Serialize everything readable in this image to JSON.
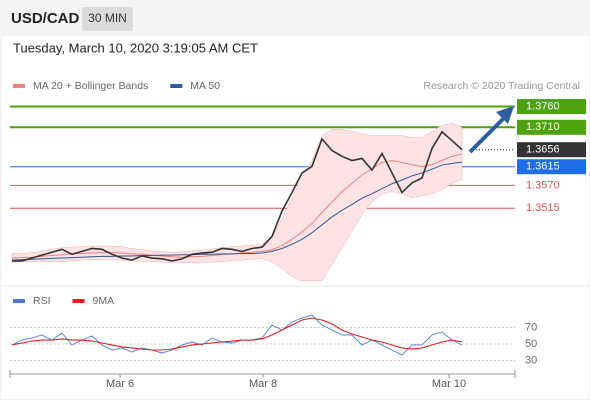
{
  "header": {
    "symbol": "USD/CAD",
    "timeframe": "30 MIN",
    "timestamp": "Tuesday, March 10, 2020 3:19:05 AM CET"
  },
  "chart_data": [
    {
      "type": "line",
      "source": "Research © 2020 Trading Central",
      "xlim": [
        -0.2,
        50.3
      ],
      "ylim": [
        1.333,
        1.3795
      ],
      "x": [
        0,
        1,
        2,
        3,
        4,
        5,
        6,
        7,
        8,
        9,
        10,
        11,
        12,
        13,
        14,
        15,
        16,
        17,
        18,
        19,
        20,
        21,
        22,
        23,
        24,
        25,
        26,
        27,
        28,
        29,
        30,
        31,
        32,
        33,
        34,
        35,
        36,
        37,
        38,
        39,
        40,
        41,
        42,
        43,
        44,
        45
      ],
      "series": [
        {
          "name": "MA 20 + Bollinger Bands",
          "color": "#f08080",
          "band_color": "#fde3e3",
          "values": [
            1.3395,
            1.3396,
            1.3397,
            1.3399,
            1.3401,
            1.3403,
            1.3405,
            1.3406,
            1.3407,
            1.3408,
            1.3408,
            1.3407,
            1.3405,
            1.3404,
            1.3402,
            1.34,
            1.3398,
            1.3397,
            1.3398,
            1.3399,
            1.3401,
            1.3403,
            1.3405,
            1.3407,
            1.3409,
            1.3411,
            1.3415,
            1.3425,
            1.344,
            1.3458,
            1.3478,
            1.3505,
            1.353,
            1.3555,
            1.3575,
            1.3595,
            1.361,
            1.3625,
            1.363,
            1.3625,
            1.362,
            1.3615,
            1.362,
            1.363,
            1.364,
            1.3645
          ],
          "upper": [
            1.3405,
            1.3406,
            1.3408,
            1.3412,
            1.3416,
            1.342,
            1.3422,
            1.3422,
            1.3423,
            1.3424,
            1.3424,
            1.3422,
            1.3418,
            1.3415,
            1.3412,
            1.341,
            1.3409,
            1.341,
            1.3412,
            1.3414,
            1.3417,
            1.342,
            1.3422,
            1.3424,
            1.3426,
            1.3428,
            1.3445,
            1.349,
            1.354,
            1.359,
            1.363,
            1.369,
            1.3705,
            1.3705,
            1.37,
            1.3695,
            1.369,
            1.369,
            1.369,
            1.369,
            1.3685,
            1.3685,
            1.37,
            1.3715,
            1.372,
            1.371
          ],
          "lower": [
            1.3385,
            1.3386,
            1.3386,
            1.3386,
            1.3386,
            1.3386,
            1.3388,
            1.339,
            1.3391,
            1.3392,
            1.3392,
            1.339,
            1.3388,
            1.3387,
            1.3386,
            1.3385,
            1.3384,
            1.3384,
            1.3384,
            1.3384,
            1.3385,
            1.3386,
            1.3388,
            1.339,
            1.3392,
            1.3394,
            1.3385,
            1.337,
            1.335,
            1.334,
            1.334,
            1.334,
            1.338,
            1.342,
            1.346,
            1.35,
            1.353,
            1.355,
            1.3555,
            1.355,
            1.354,
            1.3545,
            1.355,
            1.356,
            1.3575,
            1.3585
          ]
        },
        {
          "name": "MA 50",
          "color": "#2e5a9a",
          "values": [
            1.339,
            1.3391,
            1.3392,
            1.3393,
            1.3394,
            1.3395,
            1.3396,
            1.3397,
            1.3398,
            1.3399,
            1.3399,
            1.34,
            1.34,
            1.3401,
            1.3401,
            1.3402,
            1.3402,
            1.3403,
            1.3403,
            1.3404,
            1.3404,
            1.3405,
            1.3405,
            1.3406,
            1.3406,
            1.3407,
            1.3411,
            1.3418,
            1.3428,
            1.344,
            1.3456,
            1.3475,
            1.3494,
            1.351,
            1.3524,
            1.3539,
            1.355,
            1.3562,
            1.3574,
            1.3583,
            1.3593,
            1.36,
            1.3609,
            1.3619,
            1.3623,
            1.3626
          ]
        },
        {
          "color": "#333333",
          "width": 1.6,
          "values": [
            1.3388,
            1.3388,
            1.3395,
            1.3402,
            1.3409,
            1.3416,
            1.3404,
            1.3411,
            1.3418,
            1.3416,
            1.3404,
            1.3395,
            1.339,
            1.34,
            1.3395,
            1.3393,
            1.3388,
            1.3393,
            1.3404,
            1.3407,
            1.3409,
            1.3418,
            1.3416,
            1.3411,
            1.3418,
            1.3421,
            1.3447,
            1.3508,
            1.3553,
            1.36,
            1.3616,
            1.3682,
            1.3654,
            1.364,
            1.363,
            1.3635,
            1.3607,
            1.3647,
            1.36,
            1.3553,
            1.3576,
            1.3588,
            1.3659,
            1.3699,
            1.3678,
            1.3656
          ]
        }
      ],
      "levels": [
        {
          "value": 1.376,
          "label": "1.3760",
          "color": "#4ca30d",
          "label_style": "filled",
          "line_style": "solid"
        },
        {
          "value": 1.371,
          "label": "1.3710",
          "color": "#4ca30d",
          "label_style": "filled",
          "line_style": "solid"
        },
        {
          "value": 1.3656,
          "label": "1.3656",
          "color": "#333333",
          "label_style": "filled",
          "line_style": "dotted"
        },
        {
          "value": 1.3615,
          "label": "1.3615",
          "color": "#1e6ee8",
          "label_style": "filled",
          "line_style": "solid"
        },
        {
          "value": 1.357,
          "label": "1.3570",
          "color": "#e05555",
          "label_style": "plain",
          "line_style": "solid"
        },
        {
          "value": 1.3515,
          "label": "1.3515",
          "color": "#e05555",
          "label_style": "plain",
          "line_style": "solid"
        }
      ]
    },
    {
      "type": "line",
      "xlim": [
        -0.2,
        50.3
      ],
      "ylim": [
        17,
        86
      ],
      "yticks": [
        30,
        50,
        70
      ],
      "xticks": [
        {
          "value": 10.8,
          "label": "Mar 6"
        },
        {
          "value": 25.1,
          "label": "Mar 8"
        },
        {
          "value": 43.7,
          "label": "Mar 10"
        }
      ],
      "x": [
        0,
        1,
        2,
        3,
        4,
        5,
        6,
        7,
        8,
        9,
        10,
        11,
        12,
        13,
        14,
        15,
        16,
        17,
        18,
        19,
        20,
        21,
        22,
        23,
        24,
        25,
        26,
        27,
        28,
        29,
        30,
        31,
        32,
        33,
        34,
        35,
        36,
        37,
        38,
        39,
        40,
        41,
        42,
        43,
        44,
        45
      ],
      "series": [
        {
          "name": "RSI",
          "color": "#4a7cd6",
          "width": 0.9,
          "values": [
            48.8,
            54.8,
            57.3,
            60.9,
            54.8,
            63.3,
            48.8,
            54.8,
            59.7,
            48.8,
            42.7,
            45.2,
            40.3,
            45.2,
            42.7,
            39.1,
            42.7,
            48.8,
            52.4,
            48.8,
            57.3,
            52.4,
            51.2,
            54.8,
            54.8,
            57.3,
            73.0,
            67.0,
            76.7,
            81.5,
            85.0,
            73.0,
            67.0,
            60.9,
            60.9,
            48.8,
            54.8,
            48.8,
            42.7,
            36.7,
            48.8,
            48.8,
            60.9,
            64.6,
            54.8,
            48.8
          ]
        },
        {
          "name": "9MA",
          "color": "#e02020",
          "width": 1.1,
          "values": [
            48.8,
            51.2,
            53.6,
            54.8,
            54.8,
            56.1,
            54.8,
            54.8,
            53.6,
            51.2,
            48.8,
            46.4,
            45.2,
            43.9,
            42.7,
            42.7,
            43.9,
            46.4,
            48.8,
            50.0,
            51.2,
            52.4,
            53.6,
            54.8,
            54.8,
            56.1,
            60.9,
            67.0,
            73.0,
            79.1,
            81.5,
            79.1,
            74.2,
            67.0,
            62.1,
            58.5,
            54.8,
            52.4,
            48.8,
            45.2,
            43.9,
            45.2,
            48.8,
            52.4,
            54.8,
            52.4
          ]
        }
      ]
    }
  ]
}
